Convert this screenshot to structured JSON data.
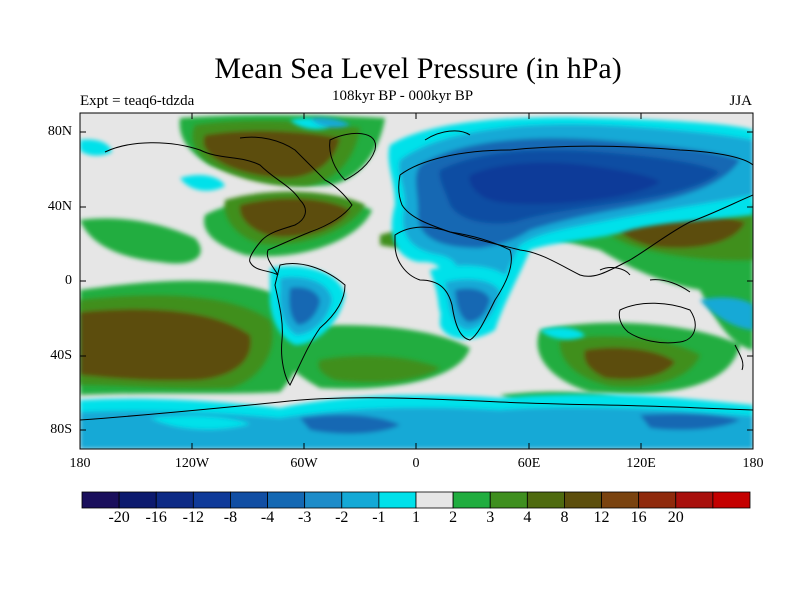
{
  "title": "Mean Sea Level Pressure (in hPa)",
  "subtitle": "108kyr BP - 000kyr BP",
  "expt_label": "Expt = teaq6-tdzda",
  "season": "JJA",
  "map": {
    "projection": "cylindrical-equidistant",
    "lon_range": [
      -180,
      180
    ],
    "lat_range": [
      -90,
      90
    ],
    "y_ticks": [
      "80N",
      "40N",
      "0",
      "40S",
      "80S"
    ],
    "x_ticks": [
      "180",
      "120W",
      "60W",
      "0",
      "60E",
      "120E",
      "180"
    ]
  },
  "colorbar": {
    "labels": [
      "-20",
      "-16",
      "-12",
      "-8",
      "-4",
      "-3",
      "-2",
      "-1",
      "1",
      "2",
      "3",
      "4",
      "8",
      "12",
      "16",
      "20"
    ],
    "colors": [
      "#1a0f5c",
      "#0c1a6e",
      "#0d2a85",
      "#0f3a99",
      "#114ea3",
      "#1468b3",
      "#1d8cc9",
      "#14a9d6",
      "#00e1ea",
      "#e6e6e6",
      "#20ad3f",
      "#3f8f1f",
      "#4e6a0f",
      "#5c4e0c",
      "#7a4310",
      "#8f2a0c",
      "#a8100c",
      "#c40000"
    ]
  }
}
